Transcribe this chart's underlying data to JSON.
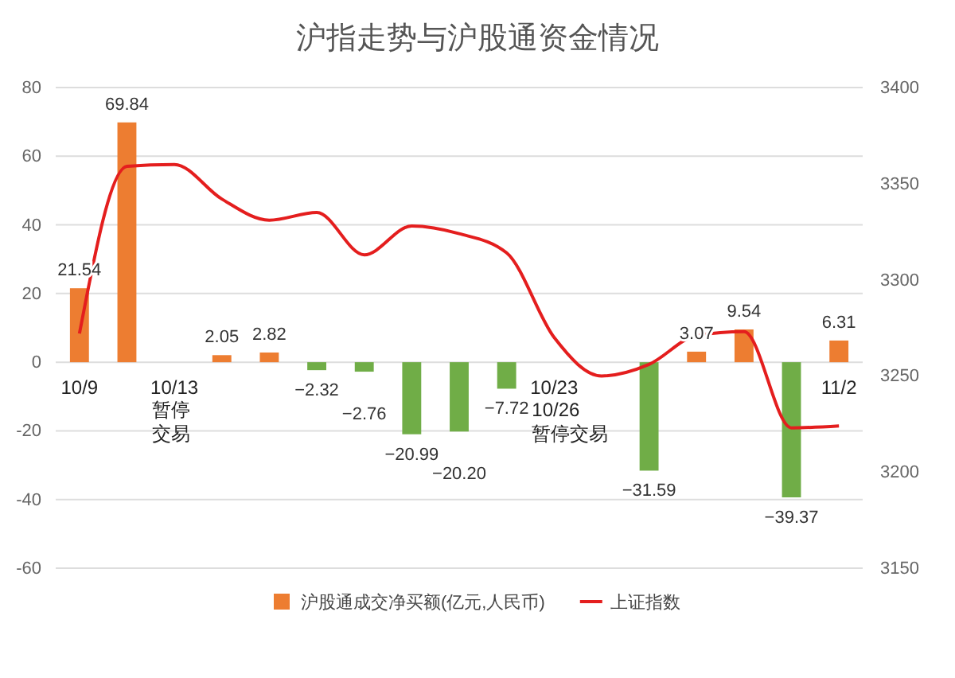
{
  "chart_data": {
    "type": "bar",
    "title": "沪指走势与沪股通资金情况",
    "categories": [
      "10/9",
      null,
      "10/13",
      null,
      null,
      null,
      null,
      null,
      null,
      null,
      "10/23",
      null,
      null,
      null,
      null,
      null,
      "11/2"
    ],
    "series": [
      {
        "name": "沪股通成交净买额(亿元,人民币)",
        "color": "#ed7d31",
        "colors": [
          "#ed7d31",
          "#ed7d31",
          null,
          "#ed7d31",
          "#ed7d31",
          "#70ad47",
          "#70ad47",
          "#70ad47",
          "#70ad47",
          "#70ad47",
          null,
          null,
          "#70ad47",
          "#ed7d31",
          "#ed7d31",
          "#70ad47",
          "#ed7d31"
        ],
        "values": [
          21.54,
          69.84,
          null,
          2.05,
          2.82,
          -2.32,
          -2.76,
          -20.99,
          -20.2,
          -7.72,
          null,
          null,
          -31.59,
          3.07,
          9.54,
          -39.37,
          6.31
        ],
        "value_labels": [
          "21.54",
          "69.84",
          null,
          "2.05",
          "2.82",
          "−2.32",
          "−2.76",
          "−20.99",
          "−20.20",
          "−7.72",
          null,
          null,
          "−31.59",
          "3.07",
          "9.54",
          "−39.37",
          "6.31"
        ]
      },
      {
        "name": "上证指数",
        "type": "line",
        "axis": "y2",
        "color": "#e41e1e",
        "values": [
          3272,
          3359,
          3360,
          3342,
          3331,
          3335,
          3313,
          3328,
          3324,
          3314,
          3270,
          3250,
          3256,
          3271,
          3273,
          3223,
          3224
        ]
      }
    ],
    "ylim": [
      -60,
      80
    ],
    "yticks": [
      -60,
      -40,
      -20,
      0,
      20,
      40,
      60,
      80
    ],
    "y2lim": [
      3150,
      3400
    ],
    "y2ticks": [
      3150,
      3200,
      3250,
      3300,
      3350,
      3400
    ],
    "grid": "y",
    "legend": "bottom",
    "marker": "none",
    "line_style": "solid",
    "annotations": [
      "暂停交易",
      "10/26\n暂停交易"
    ]
  }
}
